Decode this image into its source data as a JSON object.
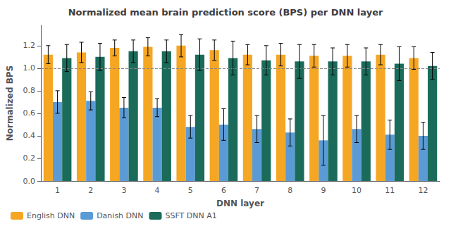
{
  "chart_data": {
    "type": "bar",
    "title": "Normalized mean brain prediction score (BPS) per DNN layer",
    "xlabel": "DNN layer",
    "ylabel": "Normalized BPS",
    "categories": [
      "1",
      "2",
      "3",
      "4",
      "5",
      "6",
      "7",
      "8",
      "9",
      "10",
      "11",
      "12"
    ],
    "series": [
      {
        "name": "English DNN",
        "color": "#F5A623",
        "values": [
          1.12,
          1.14,
          1.18,
          1.19,
          1.2,
          1.16,
          1.12,
          1.12,
          1.11,
          1.11,
          1.12,
          1.09
        ],
        "errors": [
          0.08,
          0.09,
          0.07,
          0.08,
          0.1,
          0.09,
          0.09,
          0.1,
          0.1,
          0.1,
          0.09,
          0.1
        ]
      },
      {
        "name": "Danish DNN",
        "color": "#5B9BD5",
        "values": [
          0.7,
          0.71,
          0.65,
          0.65,
          0.48,
          0.5,
          0.46,
          0.43,
          0.36,
          0.46,
          0.41,
          0.4
        ],
        "errors": [
          0.1,
          0.08,
          0.09,
          0.08,
          0.1,
          0.14,
          0.12,
          0.12,
          0.22,
          0.12,
          0.13,
          0.12
        ]
      },
      {
        "name": "SSFT DNN A1",
        "color": "#1A6B5A",
        "values": [
          1.09,
          1.1,
          1.15,
          1.15,
          1.12,
          1.09,
          1.07,
          1.06,
          1.06,
          1.06,
          1.04,
          1.02
        ],
        "errors": [
          0.12,
          0.12,
          0.1,
          0.1,
          0.14,
          0.15,
          0.13,
          0.15,
          0.12,
          0.12,
          0.15,
          0.12
        ]
      }
    ],
    "ylim": [
      0,
      1.38
    ],
    "yticks": [
      {
        "value": 0,
        "label": "0.0"
      },
      0.2,
      0.4,
      0.6,
      0.8,
      {
        "value": 1,
        "label": "1.0"
      },
      1.2
    ],
    "reference_line": {
      "y": 1.0,
      "color": "#888888",
      "line_style": "dashed"
    },
    "grid": false,
    "legend": "lower left"
  }
}
